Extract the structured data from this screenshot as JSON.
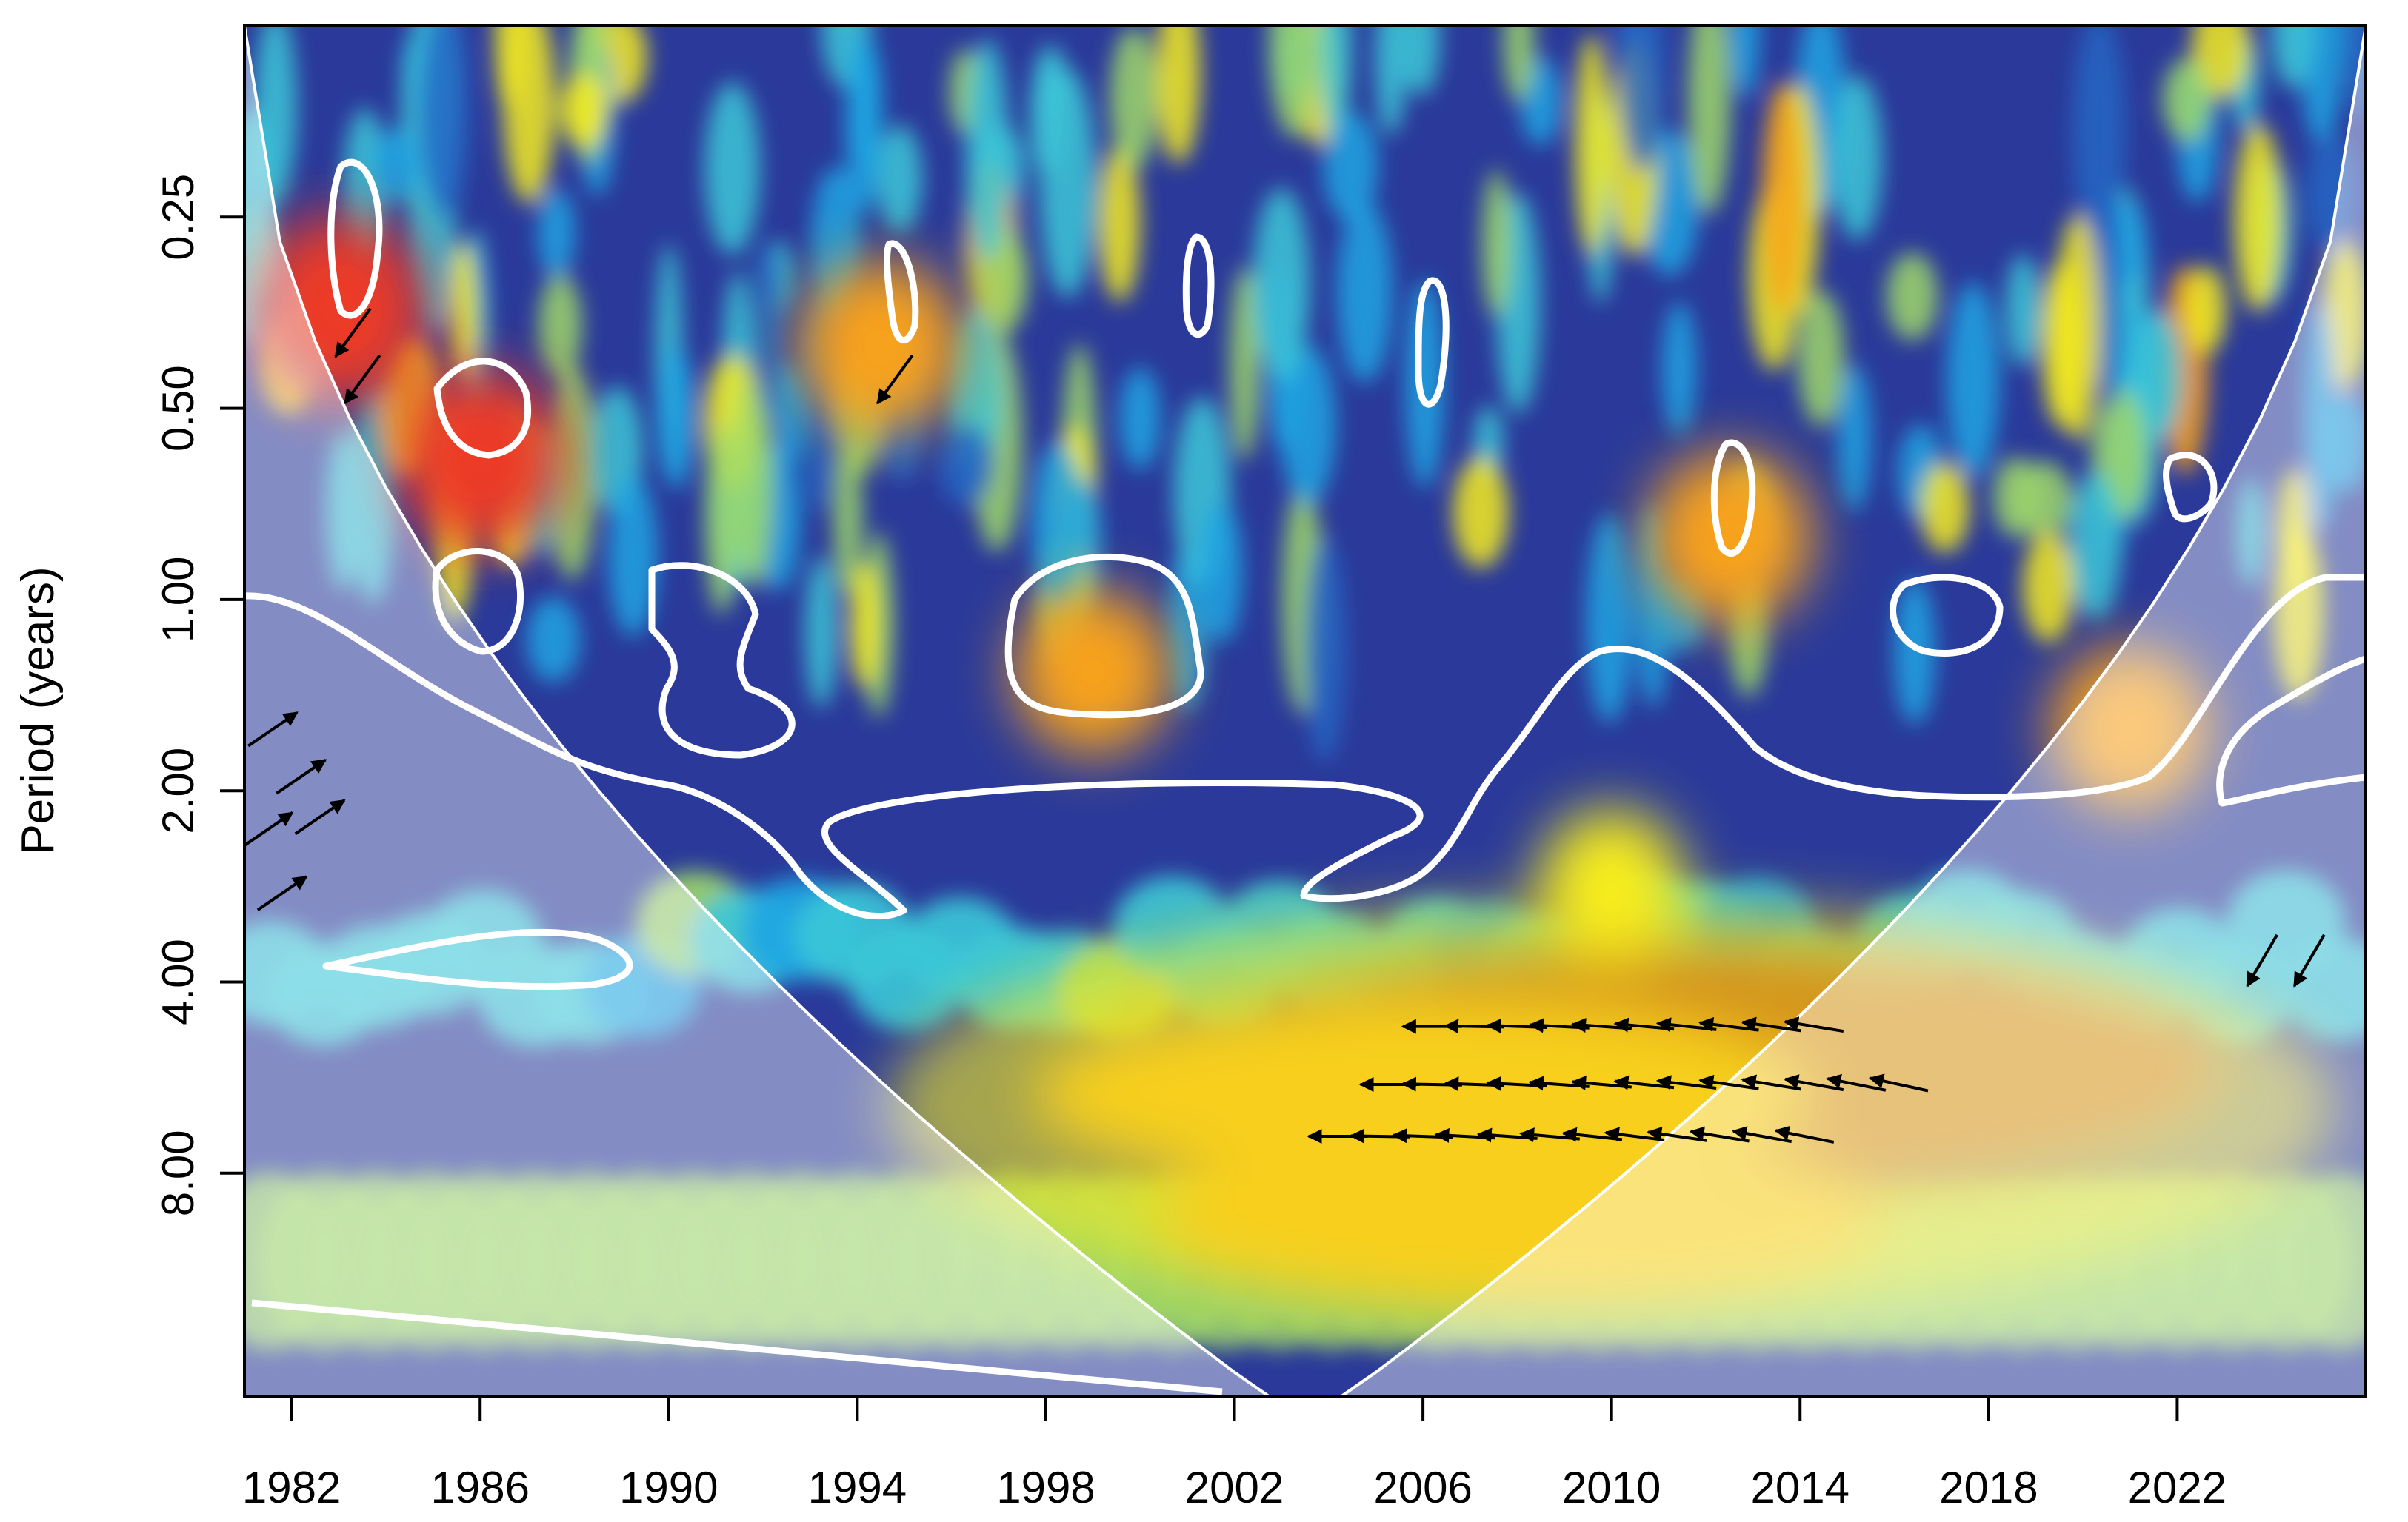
{
  "chart_data": {
    "type": "heatmap",
    "title": "",
    "xlabel": "",
    "ylabel": "Period (years)",
    "x_ticks": [
      "1982",
      "1986",
      "1990",
      "1994",
      "1998",
      "2002",
      "2006",
      "2010",
      "2014",
      "2018",
      "2022"
    ],
    "x_tick_values": [
      1982,
      1986,
      1990,
      1994,
      1998,
      2002,
      2006,
      2010,
      2014,
      2018,
      2022
    ],
    "xlim": [
      1981,
      2026
    ],
    "y_ticks": [
      "0.25",
      "0.50",
      "1.00",
      "2.00",
      "4.00",
      "8.00"
    ],
    "y_tick_values": [
      0.25,
      0.5,
      1,
      2,
      4,
      8
    ],
    "ylim": [
      0.125,
      18
    ],
    "y_scale": "log2",
    "y_reversed": true,
    "colormap": [
      "#2a2f8f",
      "#2566c4",
      "#1fa6e3",
      "#3cc8d8",
      "#9fd86a",
      "#f6ec1f",
      "#f7a21b",
      "#ec3b25",
      "#a6161a"
    ],
    "cone_of_influence": true,
    "significance_contours": "white",
    "hotspots": [
      {
        "x": 2012,
        "period": 5.5,
        "power": 1.0
      },
      {
        "x": 2006,
        "period": 6.0,
        "power": 0.75
      },
      {
        "x": 1986,
        "period": 0.6,
        "power": 0.85
      },
      {
        "x": 1983,
        "period": 0.35,
        "power": 0.9
      },
      {
        "x": 1999,
        "period": 1.3,
        "power": 0.75
      },
      {
        "x": 1994.5,
        "period": 0.4,
        "power": 0.8
      },
      {
        "x": 2012.5,
        "period": 0.8,
        "power": 0.8
      },
      {
        "x": 2010,
        "period": 2.8,
        "power": 0.65
      },
      {
        "x": 2021,
        "period": 1.6,
        "power": 0.75
      },
      {
        "x": 2008,
        "period": 9.5,
        "power": 0.7
      }
    ]
  }
}
